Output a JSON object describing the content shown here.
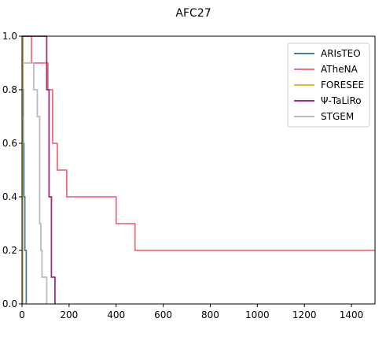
{
  "chart_data": {
    "type": "line",
    "title": "AFC27",
    "xlabel": "",
    "ylabel": "",
    "xlim": [
      0,
      1500
    ],
    "ylim": [
      0,
      1.0
    ],
    "x_ticks": [
      0,
      200,
      400,
      600,
      800,
      1000,
      1200,
      1400
    ],
    "y_ticks": [
      0.0,
      0.2,
      0.4,
      0.6,
      0.8,
      1.0
    ],
    "x_tick_labels": [
      "0",
      "200",
      "400",
      "600",
      "800",
      "1000",
      "1200",
      "1400"
    ],
    "y_tick_labels": [
      "0.0",
      "0.2",
      "0.4",
      "0.6",
      "0.8",
      "1.0"
    ],
    "grid": false,
    "legend_position": "top-right",
    "series": [
      {
        "name": "ARIsTEO",
        "color": "#4a7fa0",
        "step_points": [
          [
            0,
            1.0
          ],
          [
            3,
            1.0
          ],
          [
            3,
            0.8
          ],
          [
            5,
            0.8
          ],
          [
            5,
            0.6
          ],
          [
            8,
            0.6
          ],
          [
            8,
            0.4
          ],
          [
            12,
            0.4
          ],
          [
            12,
            0.2
          ],
          [
            18,
            0.2
          ],
          [
            18,
            0.0
          ]
        ]
      },
      {
        "name": "ATheNA",
        "color": "#f07080",
        "step_points": [
          [
            0,
            1.0
          ],
          [
            40,
            1.0
          ],
          [
            40,
            0.9
          ],
          [
            110,
            0.9
          ],
          [
            110,
            0.8
          ],
          [
            130,
            0.8
          ],
          [
            130,
            0.6
          ],
          [
            150,
            0.6
          ],
          [
            150,
            0.5
          ],
          [
            190,
            0.5
          ],
          [
            190,
            0.4
          ],
          [
            400,
            0.4
          ],
          [
            400,
            0.3
          ],
          [
            480,
            0.3
          ],
          [
            480,
            0.2
          ],
          [
            1500,
            0.2
          ]
        ]
      },
      {
        "name": "FORESEE",
        "color": "#e0b840",
        "step_points": [
          [
            0,
            1.0
          ],
          [
            1,
            1.0
          ],
          [
            1,
            0.7
          ],
          [
            2,
            0.7
          ],
          [
            2,
            0.4
          ],
          [
            3,
            0.4
          ],
          [
            3,
            0.0
          ]
        ]
      },
      {
        "name": "Ψ-TaLiRo",
        "color": "#a0307a",
        "step_points": [
          [
            0,
            1.0
          ],
          [
            105,
            1.0
          ],
          [
            105,
            0.8
          ],
          [
            115,
            0.8
          ],
          [
            115,
            0.4
          ],
          [
            125,
            0.4
          ],
          [
            125,
            0.1
          ],
          [
            140,
            0.1
          ],
          [
            140,
            0.0
          ]
        ]
      },
      {
        "name": "STGEM",
        "color": "#bbbbbb",
        "step_points": [
          [
            0,
            0.9
          ],
          [
            50,
            0.9
          ],
          [
            50,
            0.8
          ],
          [
            65,
            0.8
          ],
          [
            65,
            0.7
          ],
          [
            75,
            0.7
          ],
          [
            75,
            0.3
          ],
          [
            80,
            0.3
          ],
          [
            80,
            0.2
          ],
          [
            85,
            0.2
          ],
          [
            85,
            0.1
          ],
          [
            105,
            0.1
          ],
          [
            105,
            0.0
          ]
        ]
      }
    ]
  }
}
